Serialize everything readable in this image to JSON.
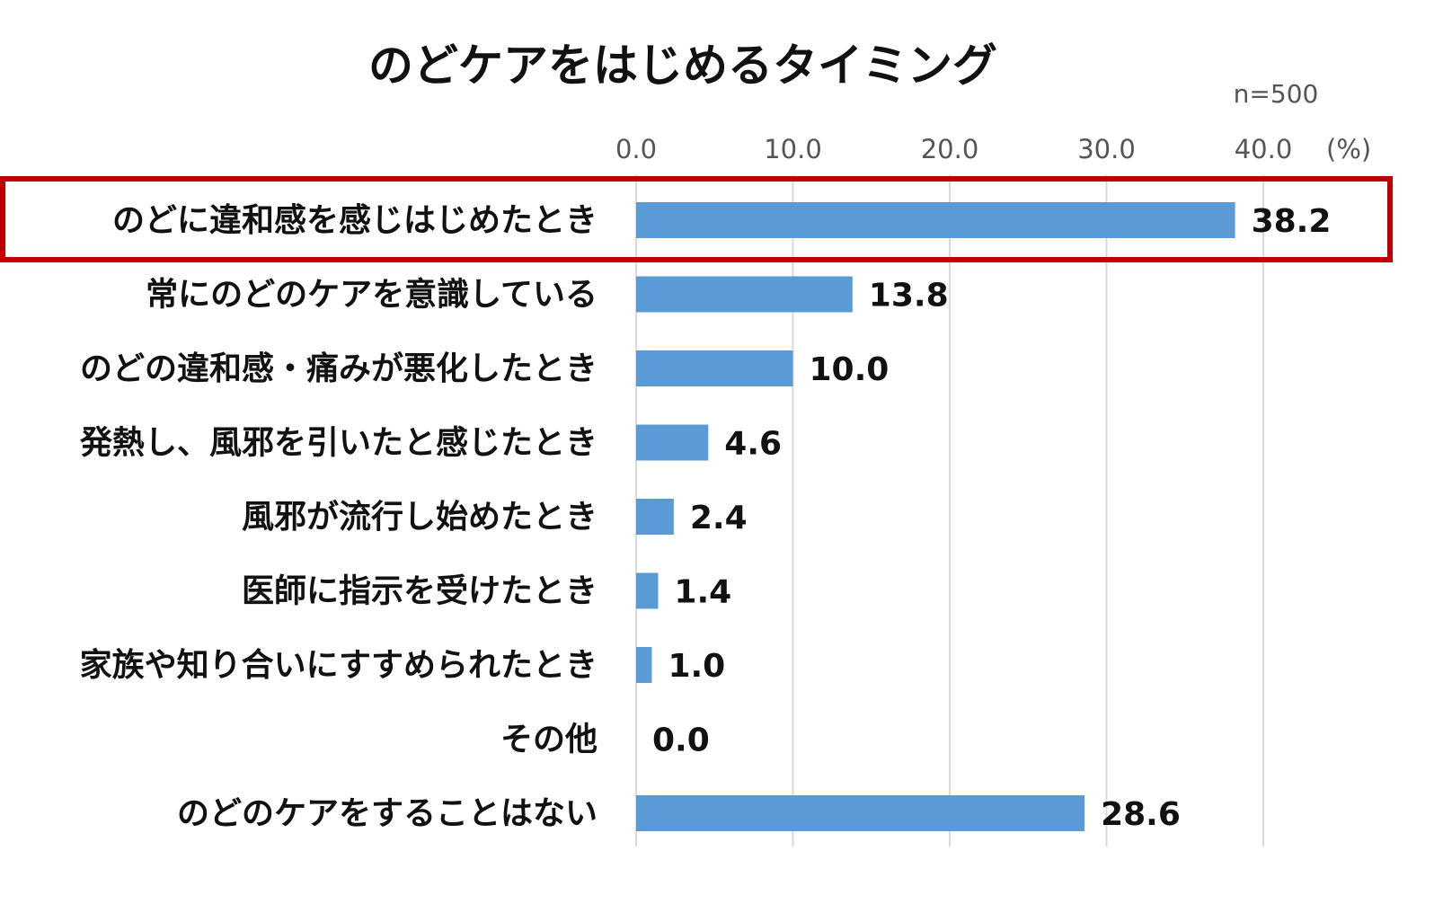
{
  "chart_data": {
    "type": "bar",
    "orientation": "horizontal",
    "title": "のどケアをはじめるタイミング",
    "sample_note": "n=500",
    "unit_label": "(%)",
    "xlim": [
      0,
      40
    ],
    "ticks": [
      0,
      10,
      20,
      30,
      40
    ],
    "tick_labels": [
      "0.0",
      "10.0",
      "20.0",
      "30.0",
      "40.0"
    ],
    "categories": [
      "のどに違和感を感じはじめたとき",
      "常にのどのケアを意識している",
      "のどの違和感・痛みが悪化したとき",
      "発熱し、風邪を引いたと感じたとき",
      "風邪が流行し始めたとき",
      "医師に指示を受けたとき",
      "家族や知り合いにすすめられたとき",
      "その他",
      "のどのケアをすることはない"
    ],
    "values": [
      38.2,
      13.8,
      10.0,
      4.6,
      2.4,
      1.4,
      1.0,
      0.0,
      28.6
    ],
    "value_labels": [
      "38.2",
      "13.8",
      "10.0",
      "4.6",
      "2.4",
      "1.4",
      "1.0",
      "0.0",
      "28.6"
    ],
    "highlighted_category_index": 0,
    "grid": true,
    "colors": {
      "bar": "#5b9bd5",
      "highlight_box": "#c00000",
      "grid": "#d9d9d9"
    }
  }
}
